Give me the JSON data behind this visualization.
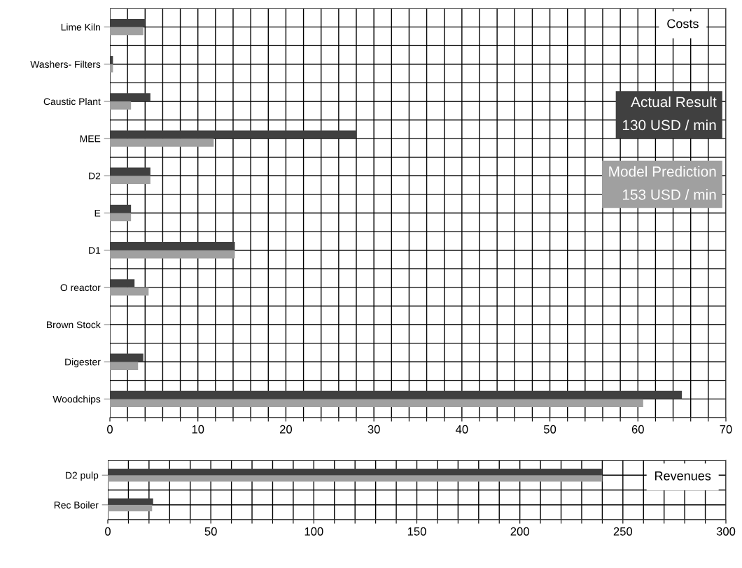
{
  "chart_data": [
    {
      "type": "bar",
      "orientation": "horizontal",
      "title": "Costs",
      "categories": [
        "Lime Kiln",
        "Washers- Filters",
        "Caustic Plant",
        "MEE",
        "D2",
        "E",
        "D1",
        "O reactor",
        "Brown Stock",
        "Digester",
        "Woodchips"
      ],
      "series": [
        {
          "name": "Actual Result",
          "color": "#404040",
          "values": [
            4.0,
            0.35,
            4.6,
            28,
            4.6,
            2.4,
            14.2,
            2.8,
            0,
            3.8,
            65
          ]
        },
        {
          "name": "Model Prediction",
          "color": "#a0a0a0",
          "values": [
            3.8,
            0.35,
            2.4,
            11.8,
            4.6,
            2.4,
            14.2,
            4.4,
            0,
            3.2,
            60.6
          ]
        }
      ],
      "annotations": [
        "130 USD / min",
        "153 USD / min"
      ],
      "xlim": [
        0,
        70
      ],
      "xticks": [
        0,
        {
          "value": 2,
          "label": null
        },
        {
          "value": 4,
          "label": null
        },
        {
          "value": 6,
          "label": null
        },
        {
          "value": 8,
          "label": null
        },
        10,
        {
          "value": 12,
          "label": null
        },
        {
          "value": 14,
          "label": null
        },
        {
          "value": 16,
          "label": null
        },
        {
          "value": 18,
          "label": null
        },
        20,
        {
          "value": 22,
          "label": null
        },
        {
          "value": 24,
          "label": null
        },
        {
          "value": 26,
          "label": null
        },
        {
          "value": 28,
          "label": null
        },
        30,
        {
          "value": 32,
          "label": null
        },
        {
          "value": 34,
          "label": null
        },
        {
          "value": 36,
          "label": null
        },
        {
          "value": 38,
          "label": null
        },
        40,
        {
          "value": 42,
          "label": null
        },
        {
          "value": 44,
          "label": null
        },
        {
          "value": 46,
          "label": null
        },
        {
          "value": 48,
          "label": null
        },
        50,
        {
          "value": 52,
          "label": null
        },
        {
          "value": 54,
          "label": null
        },
        {
          "value": 56,
          "label": null
        },
        {
          "value": 58,
          "label": null
        },
        60,
        {
          "value": 62,
          "label": null
        },
        {
          "value": 64,
          "label": null
        },
        {
          "value": 66,
          "label": null
        },
        {
          "value": 68,
          "label": null
        },
        70
      ],
      "grid": true,
      "legend": "right"
    },
    {
      "type": "bar",
      "orientation": "horizontal",
      "title": "Revenues",
      "categories": [
        "D2 pulp",
        "Rec Boiler"
      ],
      "series": [
        {
          "color": "#404040",
          "values": [
            240,
            22
          ]
        },
        {
          "color": "#a0a0a0",
          "values": [
            240,
            21.5
          ]
        }
      ],
      "xlim": [
        0,
        300
      ],
      "xticks": [
        0,
        {
          "value": 10,
          "label": null
        },
        {
          "value": 20,
          "label": null
        },
        {
          "value": 30,
          "label": null
        },
        {
          "value": 40,
          "label": null
        },
        50,
        {
          "value": 60,
          "label": null
        },
        {
          "value": 70,
          "label": null
        },
        {
          "value": 80,
          "label": null
        },
        {
          "value": 90,
          "label": null
        },
        100,
        {
          "value": 110,
          "label": null
        },
        {
          "value": 120,
          "label": null
        },
        {
          "value": 130,
          "label": null
        },
        {
          "value": 140,
          "label": null
        },
        150,
        {
          "value": 160,
          "label": null
        },
        {
          "value": 170,
          "label": null
        },
        {
          "value": 180,
          "label": null
        },
        {
          "value": 190,
          "label": null
        },
        200,
        {
          "value": 210,
          "label": null
        },
        {
          "value": 220,
          "label": null
        },
        {
          "value": 230,
          "label": null
        },
        {
          "value": 240,
          "label": null
        },
        250,
        {
          "value": 260,
          "label": null
        },
        {
          "value": 270,
          "label": null
        },
        {
          "value": 280,
          "label": null
        },
        {
          "value": 290,
          "label": null
        },
        300
      ],
      "grid": true
    }
  ]
}
